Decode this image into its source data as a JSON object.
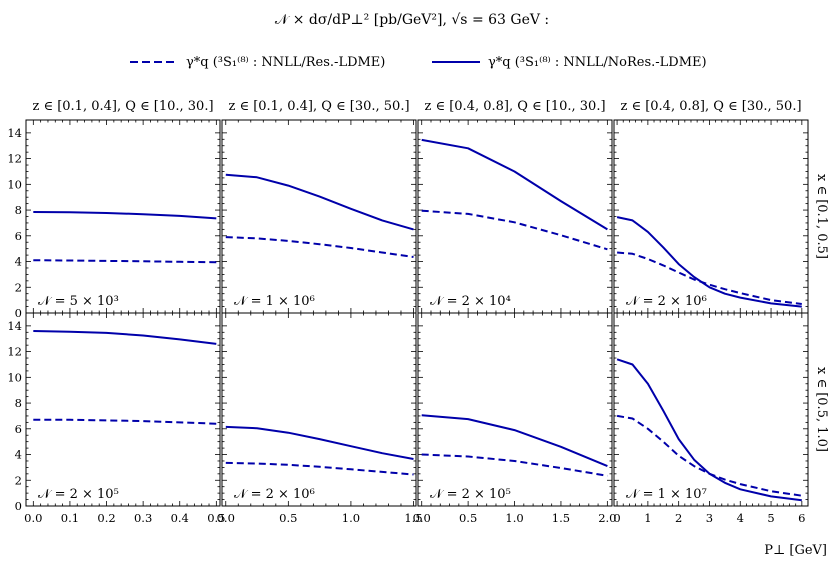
{
  "header": {
    "title": "𝒩 × dσ/dP⊥² [pb/GeV²],  √s = 63 GeV  :"
  },
  "colors": {
    "series": "#0000aa",
    "axis": "#000000"
  },
  "chart_data": {
    "type": "line",
    "title": "𝒩 × dσ/dP⊥² [pb/GeV²],  √s = 63 GeV  :",
    "xlabel": "P⊥ [GeV]",
    "ylabel": "",
    "ylim": [
      0,
      15
    ],
    "yticks": [
      0,
      2,
      4,
      6,
      8,
      10,
      12,
      14
    ],
    "grid": false,
    "legend_position": "top",
    "legend": [
      {
        "label": "γ*q (³S₁⁽⁸⁾ : NNLL/Res.-LDME)",
        "style": "dashed"
      },
      {
        "label": "γ*q (³S₁⁽⁸⁾ : NNLL/NoRes.-LDME)",
        "style": "solid"
      }
    ],
    "column_labels": [
      "z ∈ [0.1, 0.4],  Q ∈ [10., 30.]",
      "z ∈ [0.1, 0.4],  Q ∈ [30., 50.]",
      "z ∈ [0.4, 0.8],  Q ∈ [10., 30.]",
      "z ∈ [0.4, 0.8],  Q ∈ [30., 50.]"
    ],
    "row_labels": [
      "x ∈ [0.1, 0.5]",
      "x ∈ [0.5, 1.0]"
    ],
    "x_axes": [
      {
        "xlim": [
          -0.02,
          0.51
        ],
        "ticks": [
          "0.0",
          "0.1",
          "0.2",
          "0.3",
          "0.4",
          "0.5"
        ],
        "tick_values": [
          0,
          0.1,
          0.2,
          0.3,
          0.4,
          0.5
        ]
      },
      {
        "xlim": [
          -0.03,
          1.52
        ],
        "ticks": [
          "0.0",
          "0.5",
          "1.0",
          "1.5"
        ],
        "tick_values": [
          0,
          0.5,
          1.0,
          1.5
        ]
      },
      {
        "xlim": [
          -0.04,
          2.05
        ],
        "ticks": [
          "0.0",
          "0.5",
          "1.0",
          "1.5",
          "2.0"
        ],
        "tick_values": [
          0,
          0.5,
          1.0,
          1.5,
          2.0
        ]
      },
      {
        "xlim": [
          -0.1,
          6.2
        ],
        "ticks": [
          "0",
          "1",
          "2",
          "3",
          "4",
          "5",
          "6"
        ],
        "tick_values": [
          0,
          1,
          2,
          3,
          4,
          5,
          6
        ]
      }
    ],
    "panels": [
      {
        "row": 0,
        "col": 0,
        "normalization": "𝒩 = 5 × 10³",
        "series": [
          {
            "name": "γ*q (³S₁⁽⁸⁾ : NNLL/Res.-LDME)",
            "style": "dashed",
            "x": [
              0,
              0.1,
              0.2,
              0.3,
              0.4,
              0.5
            ],
            "y": [
              4.1,
              4.08,
              4.05,
              4.02,
              3.98,
              3.95
            ]
          },
          {
            "name": "γ*q (³S₁⁽⁸⁾ : NNLL/NoRes.-LDME)",
            "style": "solid",
            "x": [
              0,
              0.1,
              0.2,
              0.3,
              0.4,
              0.5
            ],
            "y": [
              7.85,
              7.83,
              7.77,
              7.68,
              7.55,
              7.35
            ]
          }
        ]
      },
      {
        "row": 0,
        "col": 1,
        "normalization": "𝒩 = 1 × 10⁶",
        "series": [
          {
            "name": "γ*q (³S₁⁽⁸⁾ : NNLL/Res.-LDME)",
            "style": "dashed",
            "x": [
              0,
              0.25,
              0.5,
              0.75,
              1.0,
              1.25,
              1.5
            ],
            "y": [
              5.9,
              5.8,
              5.6,
              5.35,
              5.05,
              4.7,
              4.35
            ]
          },
          {
            "name": "γ*q (³S₁⁽⁸⁾ : NNLL/NoRes.-LDME)",
            "style": "solid",
            "x": [
              0,
              0.25,
              0.5,
              0.75,
              1.0,
              1.25,
              1.5
            ],
            "y": [
              10.75,
              10.55,
              9.9,
              9.05,
              8.1,
              7.2,
              6.5
            ]
          }
        ]
      },
      {
        "row": 0,
        "col": 2,
        "normalization": "𝒩 = 2 × 10⁴",
        "series": [
          {
            "name": "γ*q (³S₁⁽⁸⁾ : NNLL/Res.-LDME)",
            "style": "dashed",
            "x": [
              0,
              0.5,
              1.0,
              1.5,
              2.0
            ],
            "y": [
              7.95,
              7.7,
              7.05,
              6.05,
              4.95
            ]
          },
          {
            "name": "γ*q (³S₁⁽⁸⁾ : NNLL/NoRes.-LDME)",
            "style": "solid",
            "x": [
              0,
              0.5,
              1.0,
              1.5,
              2.0
            ],
            "y": [
              13.45,
              12.8,
              11.0,
              8.7,
              6.5
            ]
          }
        ]
      },
      {
        "row": 0,
        "col": 3,
        "normalization": "𝒩 = 2 × 10⁶",
        "series": [
          {
            "name": "γ*q (³S₁⁽⁸⁾ : NNLL/Res.-LDME)",
            "style": "dashed",
            "x": [
              0,
              0.5,
              1,
              1.5,
              2,
              2.5,
              3,
              3.5,
              4,
              5,
              6
            ],
            "y": [
              4.7,
              4.6,
              4.2,
              3.7,
              3.15,
              2.6,
              2.2,
              1.85,
              1.55,
              1.0,
              0.7
            ]
          },
          {
            "name": "γ*q (³S₁⁽⁸⁾ : NNLL/NoRes.-LDME)",
            "style": "solid",
            "x": [
              0,
              0.5,
              1,
              1.5,
              2,
              2.5,
              3,
              3.5,
              4,
              5,
              6
            ],
            "y": [
              7.45,
              7.2,
              6.3,
              5.1,
              3.8,
              2.8,
              2.0,
              1.5,
              1.2,
              0.75,
              0.5
            ]
          }
        ]
      },
      {
        "row": 1,
        "col": 0,
        "normalization": "𝒩 = 2 × 10⁵",
        "series": [
          {
            "name": "γ*q (³S₁⁽⁸⁾ : NNLL/Res.-LDME)",
            "style": "dashed",
            "x": [
              0,
              0.1,
              0.2,
              0.3,
              0.4,
              0.5
            ],
            "y": [
              6.7,
              6.7,
              6.65,
              6.6,
              6.5,
              6.4
            ]
          },
          {
            "name": "γ*q (³S₁⁽⁸⁾ : NNLL/NoRes.-LDME)",
            "style": "solid",
            "x": [
              0,
              0.1,
              0.2,
              0.3,
              0.4,
              0.5
            ],
            "y": [
              13.6,
              13.55,
              13.45,
              13.25,
              12.95,
              12.6
            ]
          }
        ]
      },
      {
        "row": 1,
        "col": 1,
        "normalization": "𝒩 = 2 × 10⁶",
        "series": [
          {
            "name": "γ*q (³S₁⁽⁸⁾ : NNLL/Res.-LDME)",
            "style": "dashed",
            "x": [
              0,
              0.25,
              0.5,
              0.75,
              1.0,
              1.25,
              1.5
            ],
            "y": [
              3.35,
              3.3,
              3.2,
              3.05,
              2.85,
              2.65,
              2.45
            ]
          },
          {
            "name": "γ*q (³S₁⁽⁸⁾ : NNLL/NoRes.-LDME)",
            "style": "solid",
            "x": [
              0,
              0.25,
              0.5,
              0.75,
              1.0,
              1.25,
              1.5
            ],
            "y": [
              6.15,
              6.05,
              5.7,
              5.2,
              4.65,
              4.1,
              3.65
            ]
          }
        ]
      },
      {
        "row": 1,
        "col": 2,
        "normalization": "𝒩 = 2 × 10⁵",
        "series": [
          {
            "name": "γ*q (³S₁⁽⁸⁾ : NNLL/Res.-LDME)",
            "style": "dashed",
            "x": [
              0,
              0.5,
              1.0,
              1.5,
              2.0
            ],
            "y": [
              4.0,
              3.85,
              3.5,
              2.95,
              2.35
            ]
          },
          {
            "name": "γ*q (³S₁⁽⁸⁾ : NNLL/NoRes.-LDME)",
            "style": "solid",
            "x": [
              0,
              0.5,
              1.0,
              1.5,
              2.0
            ],
            "y": [
              7.05,
              6.75,
              5.9,
              4.6,
              3.1
            ]
          }
        ]
      },
      {
        "row": 1,
        "col": 3,
        "normalization": "𝒩 = 1 × 10⁷",
        "series": [
          {
            "name": "γ*q (³S₁⁽⁸⁾ : NNLL/Res.-LDME)",
            "style": "dashed",
            "x": [
              0,
              0.5,
              1,
              1.5,
              2,
              2.5,
              3,
              3.5,
              4,
              5,
              6
            ],
            "y": [
              7.0,
              6.8,
              6.0,
              5.0,
              3.9,
              3.1,
              2.5,
              2.05,
              1.7,
              1.15,
              0.8
            ]
          },
          {
            "name": "γ*q (³S₁⁽⁸⁾ : NNLL/NoRes.-LDME)",
            "style": "solid",
            "x": [
              0,
              0.5,
              1,
              1.5,
              2,
              2.5,
              3,
              3.5,
              4,
              5,
              6
            ],
            "y": [
              11.4,
              11.0,
              9.5,
              7.4,
              5.2,
              3.6,
              2.5,
              1.8,
              1.3,
              0.75,
              0.45
            ]
          }
        ]
      }
    ]
  }
}
